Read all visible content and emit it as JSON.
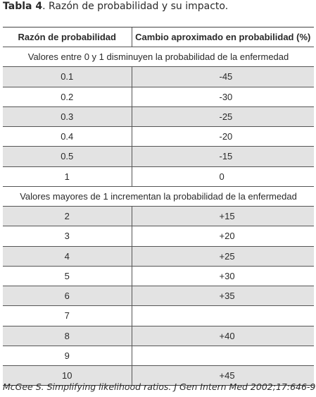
{
  "caption": {
    "label": "Tabla 4",
    "text": ". Razón de probabilidad y su impacto."
  },
  "table": {
    "headers": [
      "Razón de probabilidad",
      "Cambio aproximado en  probabilidad (%)"
    ],
    "group_decrease": "Valores entre 0 y 1 disminuyen la probabilidad de la enfermedad",
    "rows_decrease": [
      [
        "0.1",
        "-45"
      ],
      [
        "0.2",
        "-30"
      ],
      [
        "0.3",
        "-25"
      ],
      [
        "0.4",
        "-20"
      ],
      [
        "0.5",
        "-15"
      ],
      [
        "1",
        "0"
      ]
    ],
    "group_increase": "Valores mayores de 1 incrementan la probabilidad de la enfermedad",
    "rows_increase": [
      [
        "2",
        "+15"
      ],
      [
        "3",
        "+20"
      ],
      [
        "4",
        "+25"
      ],
      [
        "5",
        "+30"
      ],
      [
        "6",
        "+35"
      ],
      [
        "7",
        ""
      ],
      [
        "8",
        "+40"
      ],
      [
        "9",
        ""
      ],
      [
        "10",
        "+45"
      ]
    ]
  },
  "source": "McGee S. Simplifying likelihood ratios. J Gen Intern Med 2002;17:646-9."
}
